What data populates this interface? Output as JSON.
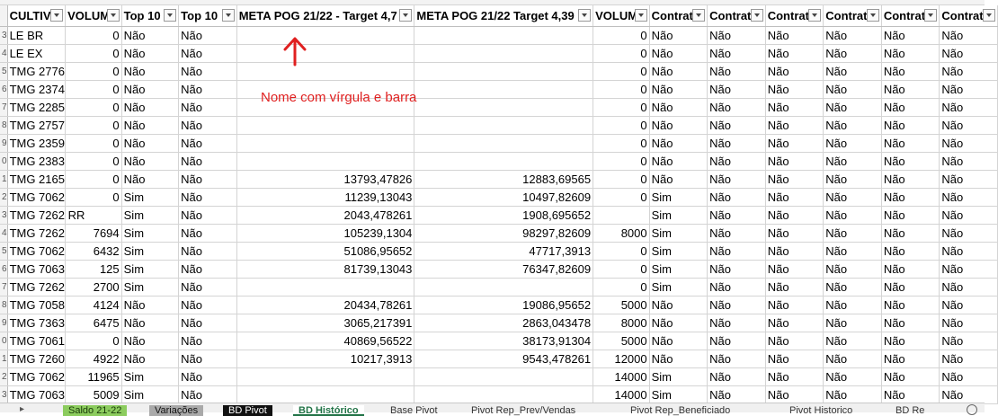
{
  "headers": [
    "CULTIV",
    "VOLUM",
    "Top 10",
    "Top 10",
    "META POG 21/22 - Target 4,7",
    "META POG 21/22 Target 4,39",
    "VOLUM",
    "Contrat",
    "Contrat",
    "Contrat",
    "Contrat",
    "Contrat",
    "Contrat"
  ],
  "row_numbers": [
    "3",
    "4",
    "5",
    "6",
    "7",
    "8",
    "9",
    "0",
    "1",
    "2",
    "3",
    "4",
    "5",
    "6",
    "7",
    "8",
    "9",
    "0",
    "1",
    "2",
    "3"
  ],
  "rows": [
    [
      "LE BR",
      "0",
      "Não",
      "Não",
      "",
      "",
      "0",
      "Não",
      "Não",
      "Não",
      "Não",
      "Não",
      "Não"
    ],
    [
      "LE EX",
      "0",
      "Não",
      "Não",
      "",
      "",
      "0",
      "Não",
      "Não",
      "Não",
      "Não",
      "Não",
      "Não"
    ],
    [
      "TMG 2776",
      "0",
      "Não",
      "Não",
      "",
      "",
      "0",
      "Não",
      "Não",
      "Não",
      "Não",
      "Não",
      "Não"
    ],
    [
      "TMG 2374",
      "0",
      "Não",
      "Não",
      "",
      "",
      "0",
      "Não",
      "Não",
      "Não",
      "Não",
      "Não",
      "Não"
    ],
    [
      "TMG 2285",
      "0",
      "Não",
      "Não",
      "",
      "",
      "0",
      "Não",
      "Não",
      "Não",
      "Não",
      "Não",
      "Não"
    ],
    [
      "TMG 2757",
      "0",
      "Não",
      "Não",
      "",
      "",
      "0",
      "Não",
      "Não",
      "Não",
      "Não",
      "Não",
      "Não"
    ],
    [
      "TMG 2359",
      "0",
      "Não",
      "Não",
      "",
      "",
      "0",
      "Não",
      "Não",
      "Não",
      "Não",
      "Não",
      "Não"
    ],
    [
      "TMG 2383",
      "0",
      "Não",
      "Não",
      "",
      "",
      "0",
      "Não",
      "Não",
      "Não",
      "Não",
      "Não",
      "Não"
    ],
    [
      "TMG 2165",
      "0",
      "Não",
      "Não",
      "13793,47826",
      "12883,69565",
      "0",
      "Não",
      "Não",
      "Não",
      "Não",
      "Não",
      "Não"
    ],
    [
      "TMG 7062",
      "0",
      "Sim",
      "Não",
      "11239,13043",
      "10497,82609",
      "0",
      "Sim",
      "Não",
      "Não",
      "Não",
      "Não",
      "Não"
    ],
    [
      "TMG 7262 RR",
      "",
      "Sim",
      "Não",
      "2043,478261",
      "1908,695652",
      "",
      "Sim",
      "Não",
      "Não",
      "Não",
      "Não",
      "Não"
    ],
    [
      "TMG 7262",
      "7694",
      "Sim",
      "Não",
      "105239,1304",
      "98297,82609",
      "8000",
      "Sim",
      "Não",
      "Não",
      "Não",
      "Não",
      "Não"
    ],
    [
      "TMG 7062",
      "6432",
      "Sim",
      "Não",
      "51086,95652",
      "47717,3913",
      "0",
      "Sim",
      "Não",
      "Não",
      "Não",
      "Não",
      "Não"
    ],
    [
      "TMG 7063",
      "125",
      "Sim",
      "Não",
      "81739,13043",
      "76347,82609",
      "0",
      "Sim",
      "Não",
      "Não",
      "Não",
      "Não",
      "Não"
    ],
    [
      "TMG 7262",
      "2700",
      "Sim",
      "Não",
      "",
      "",
      "0",
      "Sim",
      "Não",
      "Não",
      "Não",
      "Não",
      "Não"
    ],
    [
      "TMG 7058",
      "4124",
      "Não",
      "Não",
      "20434,78261",
      "19086,95652",
      "5000",
      "Não",
      "Não",
      "Não",
      "Não",
      "Não",
      "Não"
    ],
    [
      "TMG 7363",
      "6475",
      "Não",
      "Não",
      "3065,217391",
      "2863,043478",
      "8000",
      "Não",
      "Não",
      "Não",
      "Não",
      "Não",
      "Não"
    ],
    [
      "TMG 7061",
      "0",
      "Não",
      "Não",
      "40869,56522",
      "38173,91304",
      "5000",
      "Não",
      "Não",
      "Não",
      "Não",
      "Não",
      "Não"
    ],
    [
      "TMG 7260",
      "4922",
      "Não",
      "Não",
      "10217,3913",
      "9543,478261",
      "12000",
      "Não",
      "Não",
      "Não",
      "Não",
      "Não",
      "Não"
    ],
    [
      "TMG 7062",
      "11965",
      "Sim",
      "Não",
      "",
      "",
      "14000",
      "Sim",
      "Não",
      "Não",
      "Não",
      "Não",
      "Não"
    ],
    [
      "TMG 7063",
      "5009",
      "Sim",
      "Não",
      "",
      "",
      "14000",
      "Sim",
      "Não",
      "Não",
      "Não",
      "Não",
      "Não"
    ]
  ],
  "numeric_columns": [
    1,
    4,
    5,
    6
  ],
  "annotation": {
    "text": "Nome com vírgula e barra",
    "color": "#e02020"
  },
  "sheet_tabs": [
    {
      "label": "Saldo 21-22",
      "style": "green"
    },
    {
      "label": "Variações",
      "style": "gray"
    },
    {
      "label": "BD Pivot",
      "style": "black"
    },
    {
      "label": "BD Histórico",
      "style": "active"
    },
    {
      "label": "Base Pivot",
      "style": "plain"
    },
    {
      "label": "Pivot Rep_Prev/Vendas",
      "style": "plain"
    },
    {
      "label": "Pivot Rep_Beneficiado",
      "style": "plain"
    },
    {
      "label": "Pivot Historico",
      "style": "plain"
    },
    {
      "label": "BD Re",
      "style": "plain"
    }
  ],
  "colors": {
    "accent": "#217346",
    "grid": "#d4d4d4",
    "annotation": "#e02020"
  }
}
